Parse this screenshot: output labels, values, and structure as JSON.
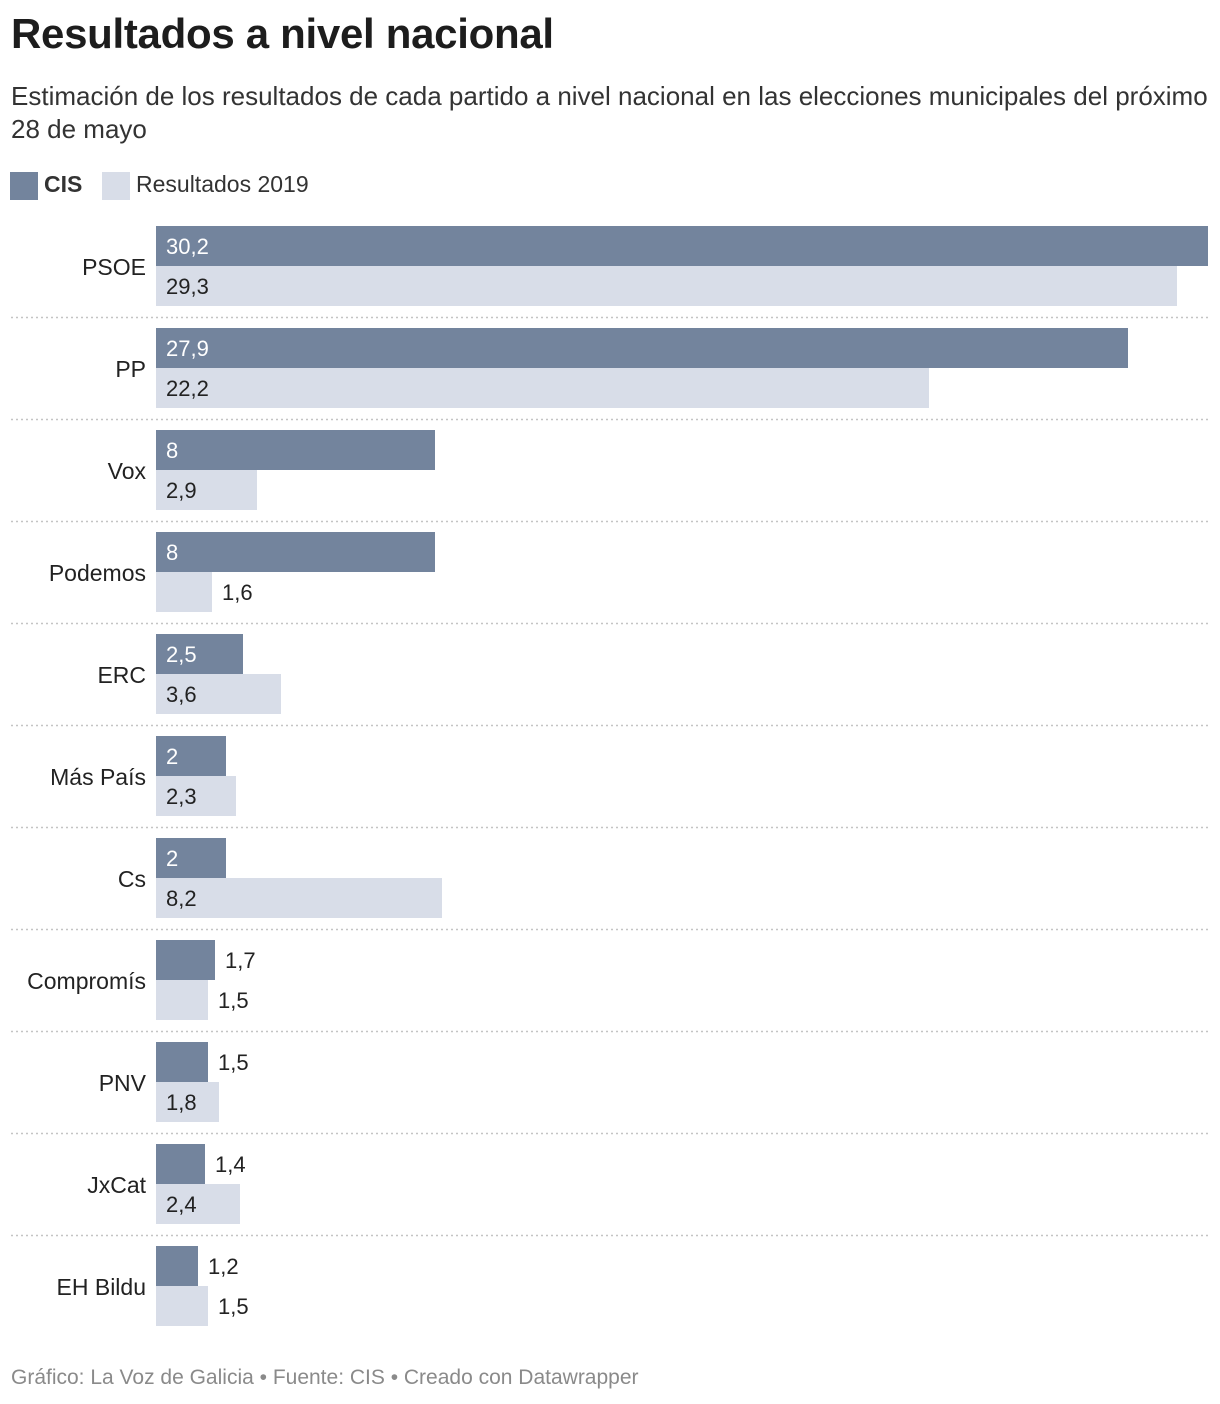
{
  "header": {
    "title": "Resultados a nivel nacional",
    "subtitle": "Estimación de los resultados de cada partido a nivel nacional en las elecciones municipales del próximo 28 de mayo"
  },
  "legend": {
    "items": [
      {
        "label": "CIS",
        "color": "#73849d"
      },
      {
        "label": "Resultados 2019",
        "color": "#d8dde8"
      }
    ]
  },
  "chart_data": {
    "type": "bar",
    "orientation": "horizontal",
    "categories": [
      "PSOE",
      "PP",
      "Vox",
      "Podemos",
      "ERC",
      "Más País",
      "Cs",
      "Compromís",
      "PNV",
      "JxCat",
      "EH Bildu"
    ],
    "series": [
      {
        "name": "CIS",
        "color": "#73849d",
        "values": [
          30.2,
          27.9,
          8,
          8,
          2.5,
          2,
          2,
          1.7,
          1.5,
          1.4,
          1.2
        ],
        "labels": [
          "30,2",
          "27,9",
          "8",
          "8",
          "2,5",
          "2",
          "2",
          "1,7",
          "1,5",
          "1,4",
          "1,2"
        ]
      },
      {
        "name": "Resultados 2019",
        "color": "#d8dde8",
        "values": [
          29.3,
          22.2,
          2.9,
          1.6,
          3.6,
          2.3,
          8.2,
          1.5,
          1.8,
          2.4,
          1.5
        ],
        "labels": [
          "29,3",
          "22,2",
          "2,9",
          "1,6",
          "3,6",
          "2,3",
          "8,2",
          "1,5",
          "1,8",
          "2,4",
          "1,5"
        ]
      }
    ],
    "xlim": [
      0,
      30.2
    ],
    "grid": false,
    "legend_position": "top-left"
  },
  "footer": {
    "text": "Gráfico: La Voz de Galicia • Fuente: CIS • Creado con Datawrapper"
  }
}
